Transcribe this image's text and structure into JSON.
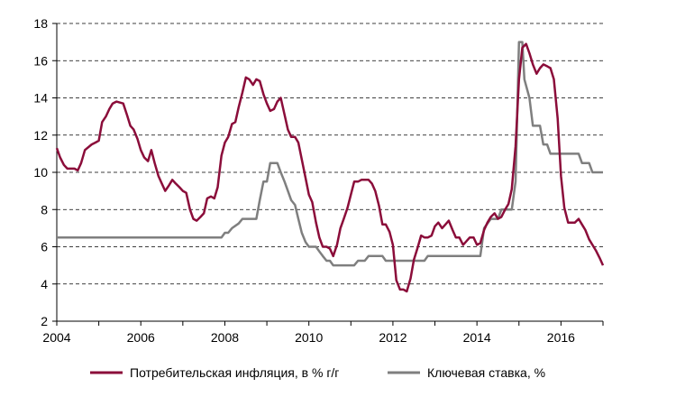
{
  "chart_data": {
    "type": "line",
    "title": "",
    "xlabel": "",
    "ylabel": "",
    "xlim": [
      2004,
      2017
    ],
    "ylim": [
      2,
      18
    ],
    "yticks": [
      2,
      4,
      6,
      8,
      10,
      12,
      14,
      16,
      18
    ],
    "xticks": [
      2004,
      2006,
      2008,
      2010,
      2012,
      2014,
      2016
    ],
    "ytick_labels": [
      "2",
      "4",
      "6",
      "8",
      "10",
      "12",
      "14",
      "16",
      "18"
    ],
    "xtick_labels": [
      "2004",
      "2006",
      "2008",
      "2010",
      "2012",
      "2014",
      "2016"
    ],
    "grid": "horizontal-dashed",
    "legend_position": "bottom",
    "series": [
      {
        "name": "Потребительская инфляция, в % г/г",
        "color": "#8b0d3a",
        "points": [
          [
            2004.0,
            11.3
          ],
          [
            2004.08,
            10.8
          ],
          [
            2004.17,
            10.4
          ],
          [
            2004.25,
            10.2
          ],
          [
            2004.42,
            10.2
          ],
          [
            2004.5,
            10.1
          ],
          [
            2004.58,
            10.5
          ],
          [
            2004.67,
            11.2
          ],
          [
            2004.83,
            11.5
          ],
          [
            2004.92,
            11.6
          ],
          [
            2005.0,
            11.7
          ],
          [
            2005.08,
            12.7
          ],
          [
            2005.17,
            13.0
          ],
          [
            2005.25,
            13.4
          ],
          [
            2005.33,
            13.7
          ],
          [
            2005.42,
            13.8
          ],
          [
            2005.58,
            13.7
          ],
          [
            2005.67,
            13.1
          ],
          [
            2005.75,
            12.5
          ],
          [
            2005.83,
            12.3
          ],
          [
            2005.92,
            11.8
          ],
          [
            2006.0,
            11.2
          ],
          [
            2006.08,
            10.8
          ],
          [
            2006.17,
            10.6
          ],
          [
            2006.25,
            11.2
          ],
          [
            2006.33,
            10.5
          ],
          [
            2006.42,
            9.8
          ],
          [
            2006.5,
            9.4
          ],
          [
            2006.58,
            9.0
          ],
          [
            2006.67,
            9.3
          ],
          [
            2006.75,
            9.6
          ],
          [
            2006.83,
            9.4
          ],
          [
            2006.92,
            9.2
          ],
          [
            2007.0,
            9.0
          ],
          [
            2007.08,
            8.9
          ],
          [
            2007.17,
            8.0
          ],
          [
            2007.25,
            7.5
          ],
          [
            2007.33,
            7.4
          ],
          [
            2007.42,
            7.6
          ],
          [
            2007.5,
            7.8
          ],
          [
            2007.58,
            8.6
          ],
          [
            2007.67,
            8.7
          ],
          [
            2007.75,
            8.6
          ],
          [
            2007.83,
            9.2
          ],
          [
            2007.92,
            10.9
          ],
          [
            2008.0,
            11.6
          ],
          [
            2008.08,
            11.9
          ],
          [
            2008.17,
            12.6
          ],
          [
            2008.25,
            12.7
          ],
          [
            2008.33,
            13.5
          ],
          [
            2008.42,
            14.3
          ],
          [
            2008.5,
            15.1
          ],
          [
            2008.58,
            15.0
          ],
          [
            2008.67,
            14.7
          ],
          [
            2008.75,
            15.0
          ],
          [
            2008.83,
            14.9
          ],
          [
            2008.92,
            14.2
          ],
          [
            2009.0,
            13.7
          ],
          [
            2009.08,
            13.3
          ],
          [
            2009.17,
            13.4
          ],
          [
            2009.25,
            13.8
          ],
          [
            2009.33,
            14.0
          ],
          [
            2009.42,
            13.1
          ],
          [
            2009.5,
            12.3
          ],
          [
            2009.58,
            11.9
          ],
          [
            2009.67,
            11.9
          ],
          [
            2009.75,
            11.6
          ],
          [
            2009.83,
            10.7
          ],
          [
            2009.92,
            9.7
          ],
          [
            2010.0,
            8.8
          ],
          [
            2010.08,
            8.4
          ],
          [
            2010.17,
            7.3
          ],
          [
            2010.25,
            6.5
          ],
          [
            2010.33,
            6.0
          ],
          [
            2010.42,
            6.0
          ],
          [
            2010.5,
            5.9
          ],
          [
            2010.58,
            5.5
          ],
          [
            2010.67,
            6.1
          ],
          [
            2010.75,
            7.0
          ],
          [
            2010.83,
            7.5
          ],
          [
            2010.92,
            8.1
          ],
          [
            2011.0,
            8.8
          ],
          [
            2011.08,
            9.5
          ],
          [
            2011.17,
            9.5
          ],
          [
            2011.25,
            9.6
          ],
          [
            2011.42,
            9.6
          ],
          [
            2011.5,
            9.4
          ],
          [
            2011.58,
            9.0
          ],
          [
            2011.67,
            8.2
          ],
          [
            2011.75,
            7.2
          ],
          [
            2011.83,
            7.2
          ],
          [
            2011.92,
            6.8
          ],
          [
            2012.0,
            6.1
          ],
          [
            2012.08,
            4.2
          ],
          [
            2012.17,
            3.7
          ],
          [
            2012.25,
            3.7
          ],
          [
            2012.33,
            3.6
          ],
          [
            2012.42,
            4.3
          ],
          [
            2012.5,
            5.3
          ],
          [
            2012.58,
            5.9
          ],
          [
            2012.67,
            6.6
          ],
          [
            2012.75,
            6.5
          ],
          [
            2012.83,
            6.5
          ],
          [
            2012.92,
            6.6
          ],
          [
            2013.0,
            7.1
          ],
          [
            2013.08,
            7.3
          ],
          [
            2013.17,
            7.0
          ],
          [
            2013.25,
            7.2
          ],
          [
            2013.33,
            7.4
          ],
          [
            2013.42,
            6.9
          ],
          [
            2013.5,
            6.5
          ],
          [
            2013.58,
            6.5
          ],
          [
            2013.67,
            6.1
          ],
          [
            2013.75,
            6.3
          ],
          [
            2013.83,
            6.5
          ],
          [
            2013.92,
            6.5
          ],
          [
            2014.0,
            6.1
          ],
          [
            2014.08,
            6.2
          ],
          [
            2014.17,
            6.9
          ],
          [
            2014.25,
            7.3
          ],
          [
            2014.33,
            7.6
          ],
          [
            2014.42,
            7.8
          ],
          [
            2014.5,
            7.5
          ],
          [
            2014.58,
            7.6
          ],
          [
            2014.67,
            8.0
          ],
          [
            2014.75,
            8.3
          ],
          [
            2014.83,
            9.1
          ],
          [
            2014.92,
            11.4
          ],
          [
            2015.0,
            15.0
          ],
          [
            2015.08,
            16.7
          ],
          [
            2015.17,
            16.9
          ],
          [
            2015.25,
            16.4
          ],
          [
            2015.33,
            15.8
          ],
          [
            2015.42,
            15.3
          ],
          [
            2015.5,
            15.6
          ],
          [
            2015.58,
            15.8
          ],
          [
            2015.67,
            15.7
          ],
          [
            2015.75,
            15.6
          ],
          [
            2015.83,
            15.0
          ],
          [
            2015.92,
            12.9
          ],
          [
            2016.0,
            9.8
          ],
          [
            2016.08,
            8.1
          ],
          [
            2016.17,
            7.3
          ],
          [
            2016.25,
            7.3
          ],
          [
            2016.33,
            7.3
          ],
          [
            2016.42,
            7.5
          ],
          [
            2016.5,
            7.2
          ],
          [
            2016.58,
            6.9
          ],
          [
            2016.67,
            6.4
          ],
          [
            2016.75,
            6.1
          ],
          [
            2016.83,
            5.8
          ],
          [
            2016.92,
            5.4
          ],
          [
            2017.0,
            5.0
          ]
        ]
      },
      {
        "name": "Ключевая ставка, %",
        "color": "#7f7f7f",
        "points": [
          [
            2004.0,
            6.5
          ],
          [
            2007.92,
            6.5
          ],
          [
            2008.0,
            6.75
          ],
          [
            2008.08,
            6.75
          ],
          [
            2008.17,
            7.0
          ],
          [
            2008.33,
            7.25
          ],
          [
            2008.42,
            7.5
          ],
          [
            2008.75,
            7.5
          ],
          [
            2008.83,
            8.5
          ],
          [
            2008.92,
            9.5
          ],
          [
            2009.0,
            9.5
          ],
          [
            2009.08,
            10.5
          ],
          [
            2009.25,
            10.5
          ],
          [
            2009.33,
            10.0
          ],
          [
            2009.42,
            9.5
          ],
          [
            2009.5,
            9.0
          ],
          [
            2009.58,
            8.5
          ],
          [
            2009.67,
            8.25
          ],
          [
            2009.75,
            7.5
          ],
          [
            2009.83,
            6.75
          ],
          [
            2009.92,
            6.25
          ],
          [
            2010.0,
            6.0
          ],
          [
            2010.17,
            6.0
          ],
          [
            2010.25,
            5.75
          ],
          [
            2010.33,
            5.5
          ],
          [
            2010.42,
            5.25
          ],
          [
            2010.5,
            5.25
          ],
          [
            2010.58,
            5.0
          ],
          [
            2011.08,
            5.0
          ],
          [
            2011.17,
            5.25
          ],
          [
            2011.33,
            5.25
          ],
          [
            2011.42,
            5.5
          ],
          [
            2011.75,
            5.5
          ],
          [
            2011.83,
            5.25
          ],
          [
            2012.75,
            5.25
          ],
          [
            2012.83,
            5.5
          ],
          [
            2014.08,
            5.5
          ],
          [
            2014.17,
            7.0
          ],
          [
            2014.33,
            7.5
          ],
          [
            2014.5,
            7.5
          ],
          [
            2014.58,
            8.0
          ],
          [
            2014.83,
            8.0
          ],
          [
            2014.92,
            9.5
          ],
          [
            2015.0,
            17.0
          ],
          [
            2015.08,
            17.0
          ],
          [
            2015.13,
            15.0
          ],
          [
            2015.25,
            14.0
          ],
          [
            2015.33,
            12.5
          ],
          [
            2015.5,
            12.5
          ],
          [
            2015.58,
            11.5
          ],
          [
            2015.67,
            11.5
          ],
          [
            2015.75,
            11.0
          ],
          [
            2016.42,
            11.0
          ],
          [
            2016.5,
            10.5
          ],
          [
            2016.67,
            10.5
          ],
          [
            2016.75,
            10.0
          ],
          [
            2017.0,
            10.0
          ]
        ]
      }
    ]
  }
}
